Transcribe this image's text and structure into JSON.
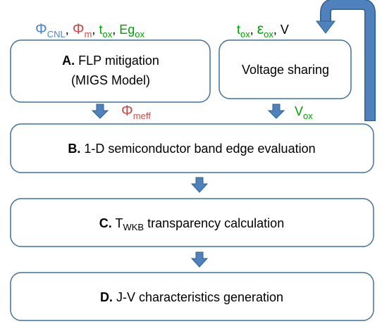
{
  "separator": ",",
  "inputs_a": [
    {
      "symbol": "Φ",
      "sub": "CNL"
    },
    {
      "symbol": "Φ",
      "sub": "m"
    },
    {
      "symbol": "t",
      "sub": "ox"
    },
    {
      "symbol": "Eg",
      "sub": "ox"
    }
  ],
  "inputs_vs": [
    {
      "symbol": "t",
      "sub": "ox"
    },
    {
      "symbol": "ε",
      "sub": "ox"
    },
    {
      "symbol": "V"
    }
  ],
  "box_a": {
    "letter": "A.",
    "text": "FLP mitigation",
    "line2": "(MIGS Model)"
  },
  "box_vs": {
    "text": "Voltage sharing"
  },
  "output_a": {
    "symbol": "Φ",
    "sub": "meff"
  },
  "output_vs": {
    "symbol": "V",
    "sub": "ox"
  },
  "box_b": {
    "letter": "B.",
    "text": "1-D semiconductor band edge evaluation"
  },
  "box_c": {
    "letter": "C.",
    "symbol": "T",
    "sub": "WKB",
    "text": "transparency calculation"
  },
  "box_d": {
    "letter": "D.",
    "text": "J-V characteristics generation"
  }
}
